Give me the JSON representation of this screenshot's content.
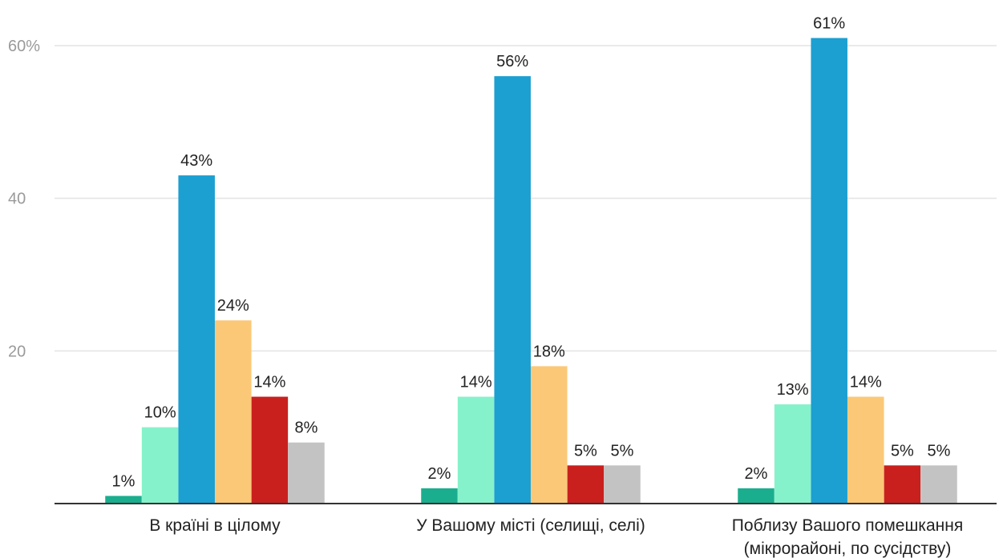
{
  "chart_data": {
    "type": "bar",
    "title": "",
    "xlabel": "",
    "ylabel": "",
    "ylim": [
      0,
      65
    ],
    "yticks": [
      20,
      40,
      60
    ],
    "ytick_labels": [
      "20",
      "40",
      "60%"
    ],
    "grid": true,
    "legend": "none",
    "categories": [
      [
        "В країні в цілому"
      ],
      [
        "У Вашому місті (селищі, селі)"
      ],
      [
        "Поблизу Вашого помешкання",
        "(мікрорайоні, по сусідству)"
      ]
    ],
    "series": [
      {
        "color": "#1aae8e",
        "values": [
          1,
          2,
          2
        ],
        "labels": [
          "1%",
          "2%",
          "2%"
        ]
      },
      {
        "color": "#86f2cb",
        "values": [
          10,
          14,
          13
        ],
        "labels": [
          "10%",
          "14%",
          "13%"
        ]
      },
      {
        "color": "#1c9fd1",
        "values": [
          43,
          56,
          61
        ],
        "labels": [
          "43%",
          "56%",
          "61%"
        ]
      },
      {
        "color": "#fbc877",
        "values": [
          24,
          18,
          14
        ],
        "labels": [
          "24%",
          "18%",
          "14%"
        ]
      },
      {
        "color": "#c9201e",
        "values": [
          14,
          5,
          5
        ],
        "labels": [
          "14%",
          "5%",
          "5%"
        ]
      },
      {
        "color": "#c3c3c3",
        "values": [
          8,
          5,
          5
        ],
        "labels": [
          "8%",
          "5%",
          "5%"
        ]
      }
    ]
  }
}
